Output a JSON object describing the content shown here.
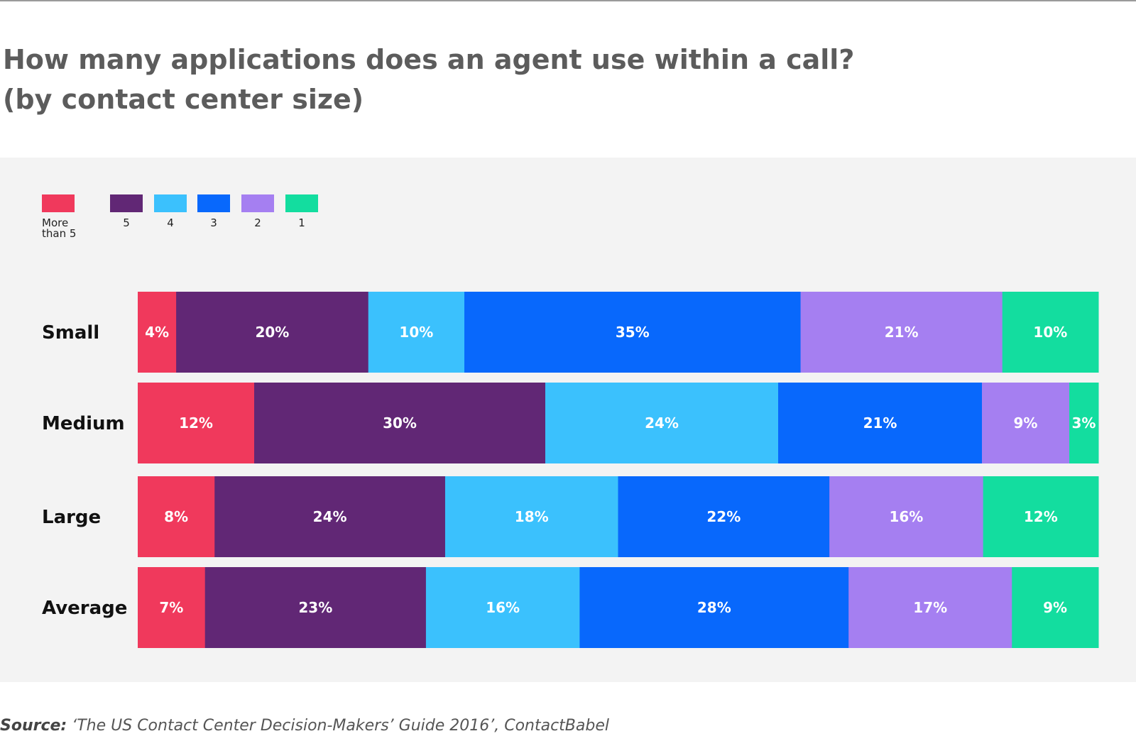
{
  "title_line1": "How many applications does an agent use within a call?",
  "title_line2": "(by contact center size)",
  "source_prefix": "Source:",
  "source_text": " ‘The US Contact Center Decision-Makers’ Guide 2016’, ContactBabel",
  "chart_data": {
    "type": "bar",
    "orientation": "horizontal",
    "stacked": true,
    "categories": [
      "Small",
      "Medium",
      "Large",
      "Average"
    ],
    "series": [
      {
        "name": "More\nthan 5",
        "color": "#f0395c",
        "values": [
          4,
          12,
          8,
          7
        ]
      },
      {
        "name": "5",
        "color": "#612775",
        "values": [
          20,
          30,
          24,
          23
        ]
      },
      {
        "name": "4",
        "color": "#3bc1fd",
        "values": [
          10,
          24,
          18,
          16
        ]
      },
      {
        "name": "3",
        "color": "#0868fc",
        "values": [
          35,
          21,
          22,
          28
        ]
      },
      {
        "name": "2",
        "color": "#a57ff1",
        "values": [
          21,
          9,
          16,
          17
        ]
      },
      {
        "name": "1",
        "color": "#13dd9f",
        "values": [
          10,
          3,
          12,
          9
        ]
      }
    ],
    "value_suffix": "%",
    "legend_position": "top-left",
    "grid": false
  }
}
